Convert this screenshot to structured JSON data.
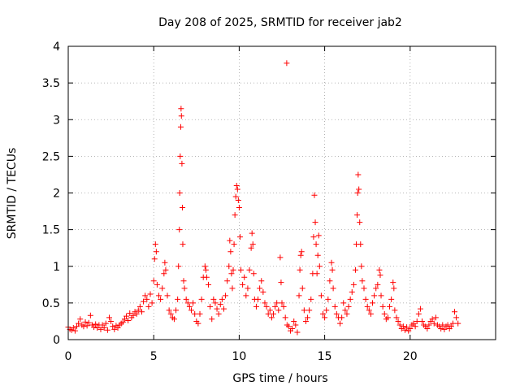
{
  "chart_data": {
    "type": "scatter",
    "title": "Day 208 of 2025, SRMTID for receiver jab2",
    "xlabel": "GPS time / hours",
    "ylabel": "SRMTID / TECUs",
    "xlim": [
      0,
      25
    ],
    "ylim": [
      0,
      4
    ],
    "xticks": [
      0,
      5,
      10,
      15,
      20
    ],
    "xtick_labels": [
      "0",
      "5",
      "10",
      "15",
      "20"
    ],
    "yticks": [
      0,
      0.5,
      1,
      1.5,
      2,
      2.5,
      3,
      3.5,
      4
    ],
    "ytick_labels": [
      "0",
      "0.5",
      "1",
      "1.5",
      "2",
      "2.5",
      "3",
      "3.5",
      "4"
    ],
    "grid": true,
    "marker": "plus",
    "series": [
      {
        "name": "SRMTID",
        "color": "#ff0000",
        "points": [
          [
            0.0,
            0.17
          ],
          [
            0.1,
            0.14
          ],
          [
            0.2,
            0.13
          ],
          [
            0.3,
            0.16
          ],
          [
            0.4,
            0.12
          ],
          [
            0.5,
            0.18
          ],
          [
            0.6,
            0.22
          ],
          [
            0.7,
            0.28
          ],
          [
            0.8,
            0.2
          ],
          [
            0.9,
            0.18
          ],
          [
            1.0,
            0.24
          ],
          [
            1.1,
            0.19
          ],
          [
            1.2,
            0.23
          ],
          [
            1.3,
            0.33
          ],
          [
            1.4,
            0.2
          ],
          [
            1.5,
            0.17
          ],
          [
            1.6,
            0.21
          ],
          [
            1.7,
            0.16
          ],
          [
            1.8,
            0.2
          ],
          [
            1.9,
            0.14
          ],
          [
            2.0,
            0.2
          ],
          [
            2.1,
            0.16
          ],
          [
            2.2,
            0.22
          ],
          [
            2.3,
            0.13
          ],
          [
            2.4,
            0.3
          ],
          [
            2.5,
            0.25
          ],
          [
            2.6,
            0.18
          ],
          [
            2.7,
            0.14
          ],
          [
            2.8,
            0.19
          ],
          [
            2.9,
            0.16
          ],
          [
            3.0,
            0.2
          ],
          [
            3.1,
            0.22
          ],
          [
            3.2,
            0.24
          ],
          [
            3.3,
            0.28
          ],
          [
            3.4,
            0.32
          ],
          [
            3.5,
            0.26
          ],
          [
            3.6,
            0.36
          ],
          [
            3.7,
            0.3
          ],
          [
            3.8,
            0.33
          ],
          [
            3.9,
            0.38
          ],
          [
            4.0,
            0.35
          ],
          [
            4.1,
            0.4
          ],
          [
            4.2,
            0.45
          ],
          [
            4.3,
            0.38
          ],
          [
            4.4,
            0.52
          ],
          [
            4.5,
            0.6
          ],
          [
            4.6,
            0.55
          ],
          [
            4.7,
            0.45
          ],
          [
            4.8,
            0.62
          ],
          [
            4.9,
            0.5
          ],
          [
            5.0,
            0.8
          ],
          [
            5.05,
            1.1
          ],
          [
            5.1,
            1.3
          ],
          [
            5.15,
            1.2
          ],
          [
            5.2,
            0.75
          ],
          [
            5.3,
            0.6
          ],
          [
            5.4,
            0.55
          ],
          [
            5.5,
            0.7
          ],
          [
            5.6,
            0.9
          ],
          [
            5.65,
            1.05
          ],
          [
            5.7,
            0.95
          ],
          [
            5.8,
            0.6
          ],
          [
            5.9,
            0.4
          ],
          [
            6.0,
            0.35
          ],
          [
            6.1,
            0.3
          ],
          [
            6.2,
            0.28
          ],
          [
            6.3,
            0.4
          ],
          [
            6.4,
            0.55
          ],
          [
            6.45,
            1.0
          ],
          [
            6.5,
            1.5
          ],
          [
            6.52,
            2.0
          ],
          [
            6.55,
            2.5
          ],
          [
            6.58,
            2.9
          ],
          [
            6.6,
            3.15
          ],
          [
            6.62,
            3.05
          ],
          [
            6.65,
            2.4
          ],
          [
            6.68,
            1.8
          ],
          [
            6.7,
            1.3
          ],
          [
            6.75,
            0.8
          ],
          [
            6.8,
            0.7
          ],
          [
            6.9,
            0.55
          ],
          [
            7.0,
            0.5
          ],
          [
            7.1,
            0.45
          ],
          [
            7.2,
            0.4
          ],
          [
            7.3,
            0.5
          ],
          [
            7.4,
            0.35
          ],
          [
            7.5,
            0.25
          ],
          [
            7.6,
            0.22
          ],
          [
            7.7,
            0.35
          ],
          [
            7.8,
            0.55
          ],
          [
            7.9,
            0.85
          ],
          [
            8.0,
            1.0
          ],
          [
            8.05,
            0.95
          ],
          [
            8.1,
            0.85
          ],
          [
            8.2,
            0.75
          ],
          [
            8.3,
            0.45
          ],
          [
            8.4,
            0.28
          ],
          [
            8.5,
            0.55
          ],
          [
            8.6,
            0.5
          ],
          [
            8.7,
            0.42
          ],
          [
            8.8,
            0.35
          ],
          [
            8.9,
            0.48
          ],
          [
            9.0,
            0.55
          ],
          [
            9.1,
            0.42
          ],
          [
            9.2,
            0.6
          ],
          [
            9.3,
            0.8
          ],
          [
            9.4,
            1.0
          ],
          [
            9.45,
            1.35
          ],
          [
            9.5,
            1.2
          ],
          [
            9.55,
            0.9
          ],
          [
            9.6,
            0.7
          ],
          [
            9.65,
            0.95
          ],
          [
            9.7,
            1.3
          ],
          [
            9.75,
            1.7
          ],
          [
            9.8,
            1.95
          ],
          [
            9.85,
            2.1
          ],
          [
            9.9,
            2.05
          ],
          [
            9.95,
            1.9
          ],
          [
            10.0,
            1.8
          ],
          [
            10.05,
            1.4
          ],
          [
            10.1,
            0.95
          ],
          [
            10.2,
            0.75
          ],
          [
            10.3,
            0.85
          ],
          [
            10.4,
            0.6
          ],
          [
            10.5,
            0.7
          ],
          [
            10.6,
            0.95
          ],
          [
            10.7,
            1.25
          ],
          [
            10.75,
            1.45
          ],
          [
            10.8,
            1.3
          ],
          [
            10.85,
            0.9
          ],
          [
            10.9,
            0.55
          ],
          [
            11.0,
            0.45
          ],
          [
            11.1,
            0.55
          ],
          [
            11.2,
            0.7
          ],
          [
            11.3,
            0.8
          ],
          [
            11.4,
            0.65
          ],
          [
            11.5,
            0.5
          ],
          [
            11.6,
            0.45
          ],
          [
            11.7,
            0.35
          ],
          [
            11.8,
            0.4
          ],
          [
            11.9,
            0.3
          ],
          [
            12.0,
            0.35
          ],
          [
            12.1,
            0.45
          ],
          [
            12.2,
            0.5
          ],
          [
            12.3,
            0.4
          ],
          [
            12.4,
            1.12
          ],
          [
            12.45,
            0.78
          ],
          [
            12.5,
            0.5
          ],
          [
            12.6,
            0.45
          ],
          [
            12.7,
            0.3
          ],
          [
            12.78,
            3.77
          ],
          [
            12.8,
            0.2
          ],
          [
            12.9,
            0.18
          ],
          [
            13.0,
            0.12
          ],
          [
            13.1,
            0.15
          ],
          [
            13.2,
            0.25
          ],
          [
            13.3,
            0.2
          ],
          [
            13.4,
            0.1
          ],
          [
            13.5,
            0.6
          ],
          [
            13.55,
            0.95
          ],
          [
            13.6,
            1.15
          ],
          [
            13.65,
            1.2
          ],
          [
            13.7,
            0.7
          ],
          [
            13.8,
            0.4
          ],
          [
            13.9,
            0.25
          ],
          [
            14.0,
            0.3
          ],
          [
            14.1,
            0.4
          ],
          [
            14.2,
            0.55
          ],
          [
            14.3,
            0.9
          ],
          [
            14.35,
            1.4
          ],
          [
            14.4,
            1.97
          ],
          [
            14.45,
            1.6
          ],
          [
            14.5,
            1.3
          ],
          [
            14.55,
            0.9
          ],
          [
            14.6,
            1.15
          ],
          [
            14.65,
            1.42
          ],
          [
            14.7,
            1.0
          ],
          [
            14.8,
            0.6
          ],
          [
            14.9,
            0.35
          ],
          [
            15.0,
            0.3
          ],
          [
            15.1,
            0.4
          ],
          [
            15.2,
            0.55
          ],
          [
            15.3,
            0.8
          ],
          [
            15.4,
            1.05
          ],
          [
            15.45,
            0.95
          ],
          [
            15.5,
            0.7
          ],
          [
            15.6,
            0.45
          ],
          [
            15.7,
            0.35
          ],
          [
            15.8,
            0.3
          ],
          [
            15.9,
            0.22
          ],
          [
            16.0,
            0.3
          ],
          [
            16.1,
            0.5
          ],
          [
            16.2,
            0.4
          ],
          [
            16.3,
            0.35
          ],
          [
            16.4,
            0.45
          ],
          [
            16.5,
            0.55
          ],
          [
            16.6,
            0.65
          ],
          [
            16.7,
            0.75
          ],
          [
            16.8,
            0.95
          ],
          [
            16.85,
            1.3
          ],
          [
            16.9,
            1.7
          ],
          [
            16.93,
            2.0
          ],
          [
            16.96,
            2.25
          ],
          [
            17.0,
            2.05
          ],
          [
            17.05,
            1.6
          ],
          [
            17.1,
            1.3
          ],
          [
            17.15,
            1.0
          ],
          [
            17.2,
            0.8
          ],
          [
            17.3,
            0.7
          ],
          [
            17.4,
            0.55
          ],
          [
            17.5,
            0.45
          ],
          [
            17.6,
            0.4
          ],
          [
            17.7,
            0.35
          ],
          [
            17.8,
            0.5
          ],
          [
            17.9,
            0.6
          ],
          [
            18.0,
            0.7
          ],
          [
            18.1,
            0.75
          ],
          [
            18.2,
            0.95
          ],
          [
            18.25,
            0.88
          ],
          [
            18.3,
            0.6
          ],
          [
            18.4,
            0.45
          ],
          [
            18.5,
            0.35
          ],
          [
            18.6,
            0.28
          ],
          [
            18.7,
            0.3
          ],
          [
            18.8,
            0.45
          ],
          [
            18.9,
            0.55
          ],
          [
            19.0,
            0.78
          ],
          [
            19.05,
            0.7
          ],
          [
            19.1,
            0.4
          ],
          [
            19.2,
            0.3
          ],
          [
            19.3,
            0.25
          ],
          [
            19.4,
            0.2
          ],
          [
            19.5,
            0.15
          ],
          [
            19.6,
            0.18
          ],
          [
            19.7,
            0.13
          ],
          [
            19.8,
            0.17
          ],
          [
            19.9,
            0.12
          ],
          [
            20.0,
            0.15
          ],
          [
            20.1,
            0.2
          ],
          [
            20.2,
            0.22
          ],
          [
            20.3,
            0.18
          ],
          [
            20.4,
            0.25
          ],
          [
            20.5,
            0.35
          ],
          [
            20.6,
            0.42
          ],
          [
            20.7,
            0.25
          ],
          [
            20.8,
            0.2
          ],
          [
            20.9,
            0.18
          ],
          [
            21.0,
            0.15
          ],
          [
            21.1,
            0.2
          ],
          [
            21.2,
            0.25
          ],
          [
            21.3,
            0.28
          ],
          [
            21.4,
            0.22
          ],
          [
            21.5,
            0.3
          ],
          [
            21.6,
            0.2
          ],
          [
            21.7,
            0.18
          ],
          [
            21.8,
            0.15
          ],
          [
            21.9,
            0.2
          ],
          [
            22.0,
            0.14
          ],
          [
            22.1,
            0.18
          ],
          [
            22.2,
            0.2
          ],
          [
            22.3,
            0.15
          ],
          [
            22.4,
            0.18
          ],
          [
            22.5,
            0.22
          ],
          [
            22.6,
            0.38
          ],
          [
            22.7,
            0.3
          ],
          [
            22.8,
            0.22
          ]
        ]
      }
    ]
  }
}
